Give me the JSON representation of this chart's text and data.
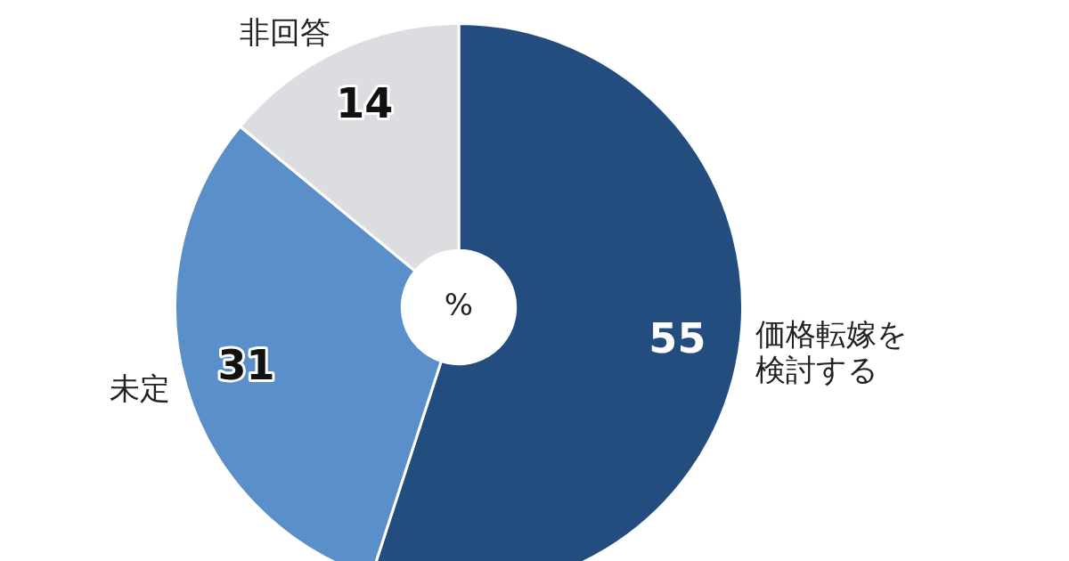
{
  "chart_data": {
    "type": "donut",
    "categories": [
      "価格転嫁を検討する",
      "未定",
      "非回答"
    ],
    "values": [
      55,
      31,
      14
    ],
    "colors": [
      "#234d7e",
      "#5b8fc9",
      "#dcdde0"
    ],
    "data_labels": true,
    "legend": false,
    "annotations": [
      "%"
    ]
  }
}
